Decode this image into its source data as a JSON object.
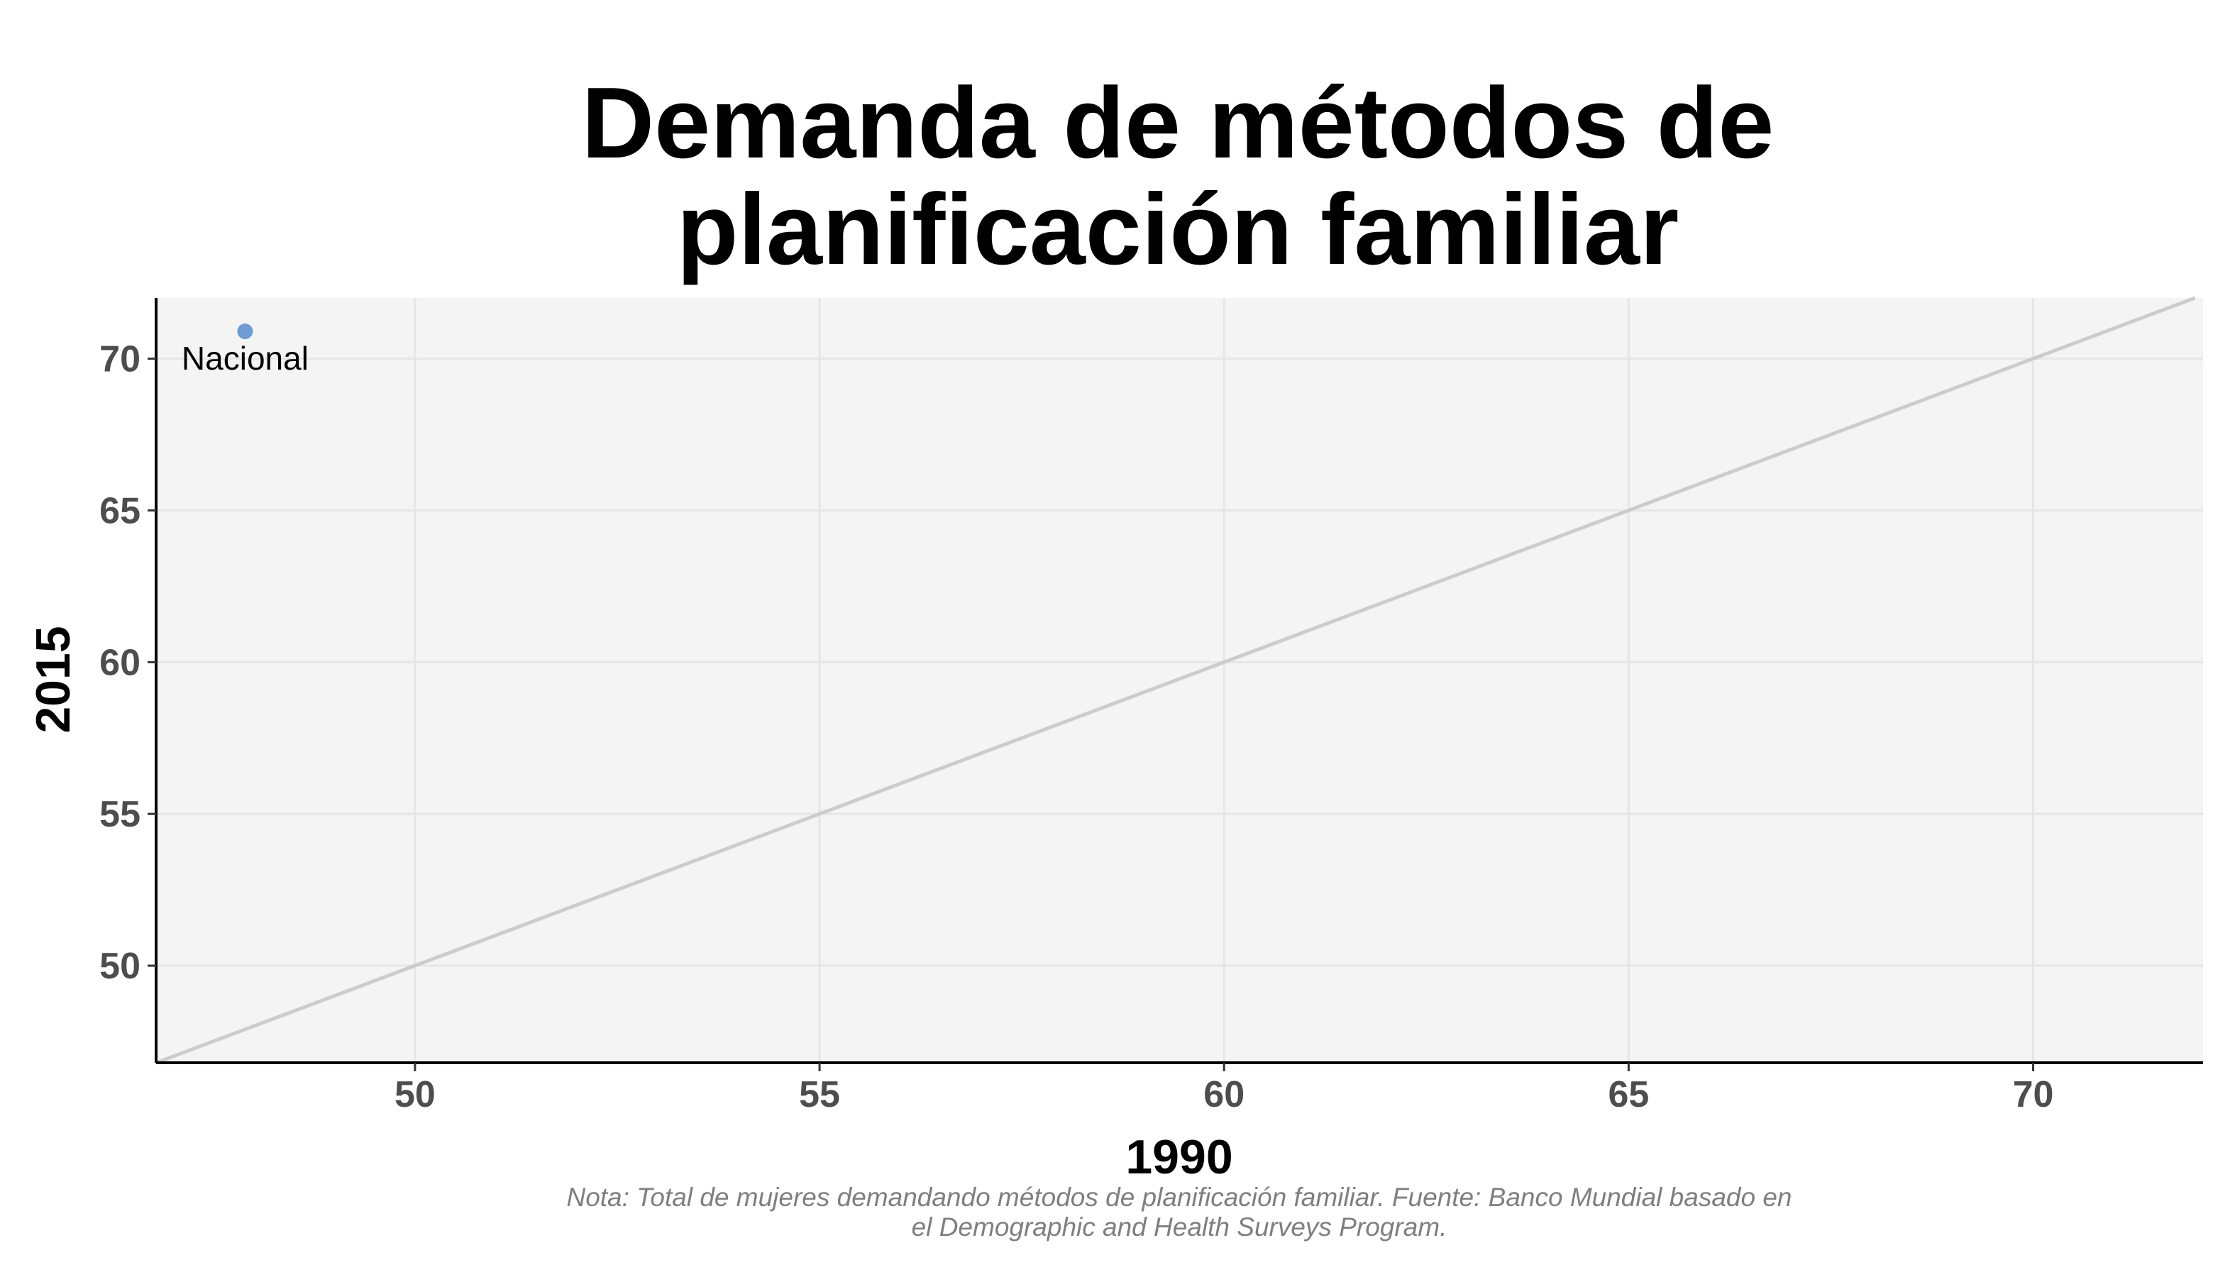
{
  "chart_data": {
    "type": "scatter",
    "title_lines": [
      "Demanda de métodos de",
      "planificación familiar"
    ],
    "xlabel": "1990",
    "ylabel": "2015",
    "xlim": [
      46.8,
      72.1
    ],
    "ylim": [
      46.8,
      72.0
    ],
    "xticks": [
      50,
      55,
      60,
      65,
      70
    ],
    "yticks": [
      50,
      55,
      60,
      65,
      70
    ],
    "grid": true,
    "reference_line": {
      "type": "identity",
      "description": "y = x"
    },
    "points": [
      {
        "label": "Nacional",
        "x": 47.9,
        "y": 70.9
      }
    ],
    "caption_lines": [
      "Nota: Total de mujeres demandando métodos de planificación familiar. Fuente: Banco Mundial basado en",
      "el Demographic and Health Surveys Program."
    ],
    "colors": {
      "panel_background": "#f4f4f4",
      "grid": "#e6e6e6",
      "reference_line": "#cccccc",
      "point": "#6f9bd6",
      "axis_line": "#000000",
      "tick_label": "#4d4d4d",
      "caption": "#7f7f7f"
    }
  }
}
